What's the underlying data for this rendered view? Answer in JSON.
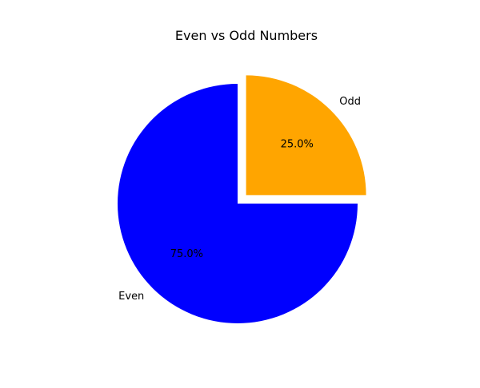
{
  "chart_data": {
    "type": "pie",
    "title": "Even vs Odd Numbers",
    "slices": [
      {
        "label": "Odd",
        "value": 25.0,
        "percent_label": "25.0%",
        "color": "#ffa500",
        "exploded": true
      },
      {
        "label": "Even",
        "value": 75.0,
        "percent_label": "75.0%",
        "color": "#0000ff",
        "exploded": false
      }
    ],
    "start_angle_deg": 90,
    "direction": "clockwise",
    "legend": "none"
  }
}
